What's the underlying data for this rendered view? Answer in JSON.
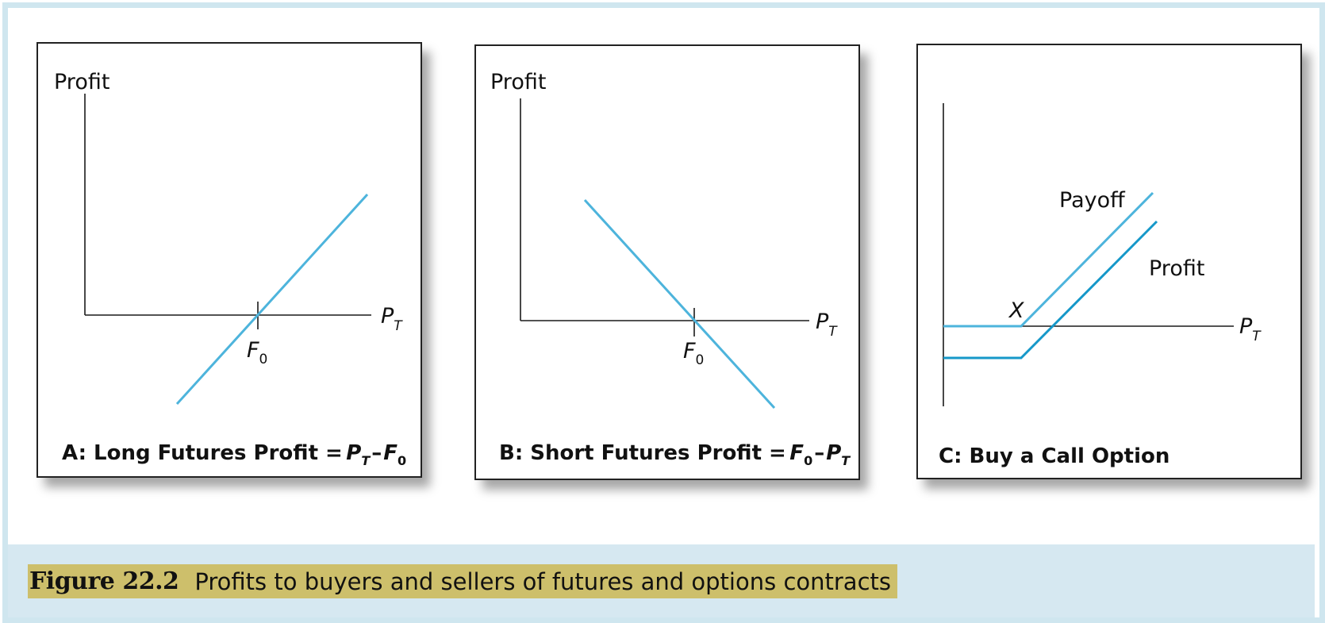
{
  "caption": {
    "figure_label": "Figure 22.2",
    "text": "Profits to buyers and sellers of futures and options contracts"
  },
  "panels": [
    {
      "id": "A",
      "y_axis_label": "Profit",
      "x_axis_label_var": "P",
      "x_axis_label_sub": "T",
      "tick_label_var": "F",
      "tick_label_sub": "0",
      "title_prefix": "A: Long Futures Profit =",
      "title_formula": {
        "v1": "P",
        "s1": "T",
        "op": "–",
        "v2": "F",
        "s2": "0"
      }
    },
    {
      "id": "B",
      "y_axis_label": "Profit",
      "x_axis_label_var": "P",
      "x_axis_label_sub": "T",
      "tick_label_var": "F",
      "tick_label_sub": "0",
      "title_prefix": "B: Short Futures Profit =",
      "title_formula": {
        "v1": "F",
        "s1": "0",
        "op": "–",
        "v2": "P",
        "s2": "T"
      }
    },
    {
      "id": "C",
      "x_axis_label_var": "P",
      "x_axis_label_sub": "T",
      "strike_label": "X",
      "payoff_label": "Payoff",
      "profit_label": "Profit",
      "title": "C: Buy a Call Option"
    }
  ],
  "colors": {
    "payoff_line": "#4db4dc",
    "profit_line": "#1698c9",
    "caption_highlight": "#cdbf6b",
    "caption_band": "#d6e8f1"
  }
}
